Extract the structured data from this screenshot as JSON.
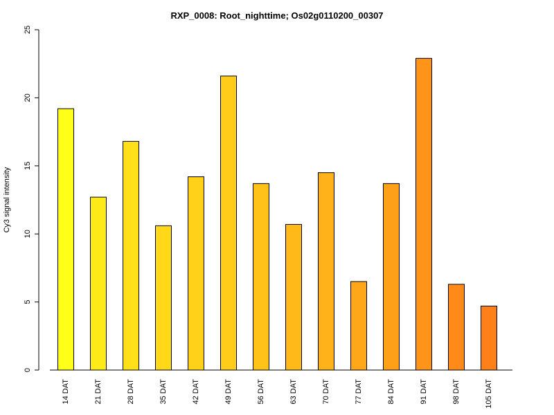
{
  "chart_data": {
    "type": "bar",
    "title": "RXP_0008: Root_nighttime; Os02g0110200_00307",
    "xlabel": "",
    "ylabel": "Cy3 signal intensity",
    "ylim": [
      0,
      25
    ],
    "yticks": [
      "0",
      "5",
      "10",
      "15",
      "20",
      "25"
    ],
    "grid": false,
    "categories": [
      "14 DAT",
      "21 DAT",
      "28 DAT",
      "35 DAT",
      "42 DAT",
      "49 DAT",
      "56 DAT",
      "63 DAT",
      "70 DAT",
      "77 DAT",
      "84 DAT",
      "91 DAT",
      "98 DAT",
      "105 DAT"
    ],
    "values": [
      19.2,
      12.7,
      16.8,
      10.6,
      14.2,
      21.6,
      13.7,
      10.7,
      14.5,
      6.5,
      13.7,
      22.9,
      6.3,
      4.7
    ],
    "colors": [
      "#FFFF19",
      "#FFEA19",
      "#FFE019",
      "#FFD819",
      "#FFD219",
      "#FFCC19",
      "#FFC219",
      "#FFBA19",
      "#FFB219",
      "#FFA619",
      "#FFA019",
      "#FF9419",
      "#FF8A19",
      "#FF7F19"
    ]
  }
}
